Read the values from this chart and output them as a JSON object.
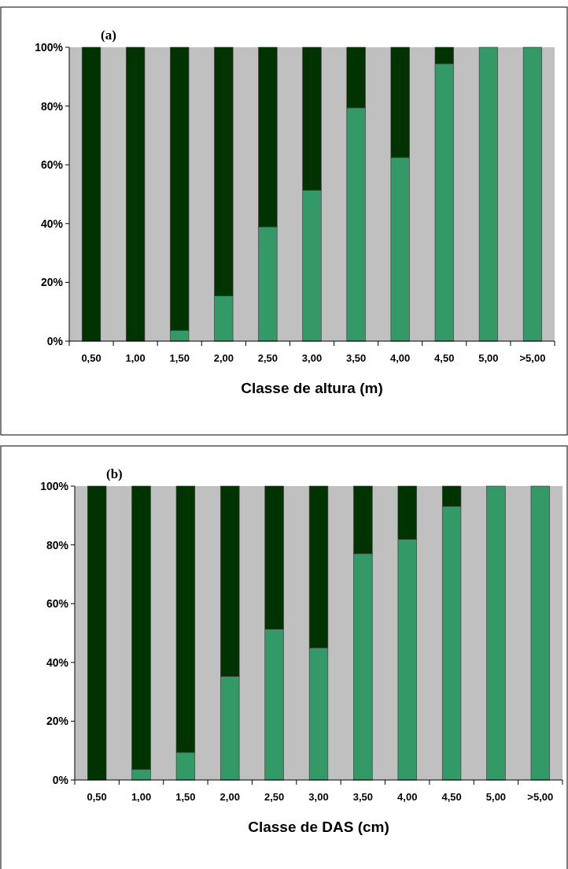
{
  "chart_data": [
    {
      "type": "bar",
      "title": "(a)",
      "xlabel": "Classe de altura (m)",
      "categories": [
        "0,50",
        "1,00",
        "1,50",
        "2,00",
        "2,50",
        "3,00",
        "3,50",
        "4,00",
        "4,50",
        "5,00",
        ">5,00"
      ],
      "stacked": true,
      "ylim": [
        0,
        100
      ],
      "yticks": [
        {
          "value": 0,
          "label": "0%"
        },
        {
          "value": 20,
          "label": "20%"
        },
        {
          "value": 40,
          "label": "40%"
        },
        {
          "value": 60,
          "label": "60%"
        },
        {
          "value": 80,
          "label": "80%"
        },
        {
          "value": 100,
          "label": "100%"
        }
      ],
      "series": [
        {
          "color": "#339966",
          "values": [
            0,
            0,
            3.7,
            15.4,
            38.9,
            51.4,
            79.4,
            62.5,
            94.4,
            100,
            100
          ]
        },
        {
          "color": "#003300",
          "values": [
            100,
            100,
            96.3,
            84.6,
            61.1,
            48.6,
            20.6,
            37.5,
            5.6,
            0,
            0
          ]
        }
      ]
    },
    {
      "type": "bar",
      "title": "(b)",
      "xlabel": "Classe de DAS (cm)",
      "categories": [
        "0,50",
        "1,00",
        "1,50",
        "2,00",
        "2,50",
        "3,00",
        "3,50",
        "4,00",
        "4,50",
        "5,00",
        ">5,00"
      ],
      "stacked": true,
      "ylim": [
        0,
        100
      ],
      "yticks": [
        {
          "value": 0,
          "label": "0%"
        },
        {
          "value": 20,
          "label": "20%"
        },
        {
          "value": 40,
          "label": "40%"
        },
        {
          "value": 60,
          "label": "60%"
        },
        {
          "value": 80,
          "label": "80%"
        },
        {
          "value": 100,
          "label": "100%"
        }
      ],
      "series": [
        {
          "color": "#339966",
          "values": [
            0,
            3.6,
            9.4,
            35.3,
            51.3,
            45,
            77,
            81.9,
            93.1,
            100,
            100
          ]
        },
        {
          "color": "#003300",
          "values": [
            100,
            96.4,
            90.6,
            64.7,
            48.7,
            55,
            23,
            18.1,
            6.9,
            0,
            0
          ]
        }
      ]
    }
  ]
}
